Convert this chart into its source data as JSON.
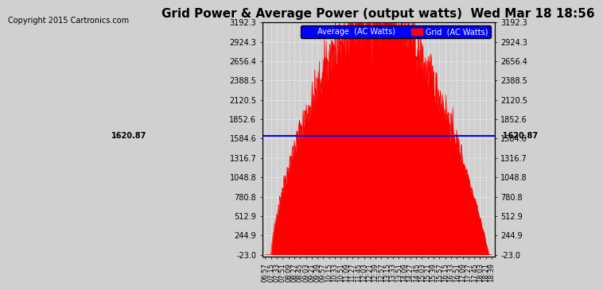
{
  "title": "Grid Power & Average Power (output watts)  Wed Mar 18 18:56",
  "copyright": "Copyright 2015 Cartronics.com",
  "average_value": 1620.87,
  "y_min": -23.0,
  "y_max": 3192.3,
  "yticks": [
    -23.0,
    244.9,
    512.9,
    780.8,
    1048.8,
    1316.7,
    1584.6,
    1852.6,
    2120.5,
    2388.5,
    2656.4,
    2924.3,
    3192.3
  ],
  "background_color": "#d0d0d0",
  "plot_bg_color": "#d0d0d0",
  "fill_color": "#ff0000",
  "line_color": "#ff0000",
  "avg_line_color": "#0000ff",
  "legend_avg_label": "Average  (AC Watts)",
  "legend_grid_label": "Grid  (AC Watts)",
  "xtick_labels": [
    "06:57",
    "07:15",
    "07:33",
    "07:51",
    "08:09",
    "08:27",
    "08:45",
    "09:03",
    "09:21",
    "09:39",
    "09:57",
    "10:15",
    "10:33",
    "10:51",
    "11:09",
    "11:27",
    "11:45",
    "12:03",
    "12:21",
    "12:39",
    "12:57",
    "13:15",
    "13:33",
    "13:51",
    "14:09",
    "14:27",
    "14:45",
    "15:03",
    "15:21",
    "15:39",
    "15:57",
    "16:15",
    "16:33",
    "16:51",
    "17:09",
    "17:27",
    "17:45",
    "18:03",
    "18:21",
    "18:39"
  ]
}
